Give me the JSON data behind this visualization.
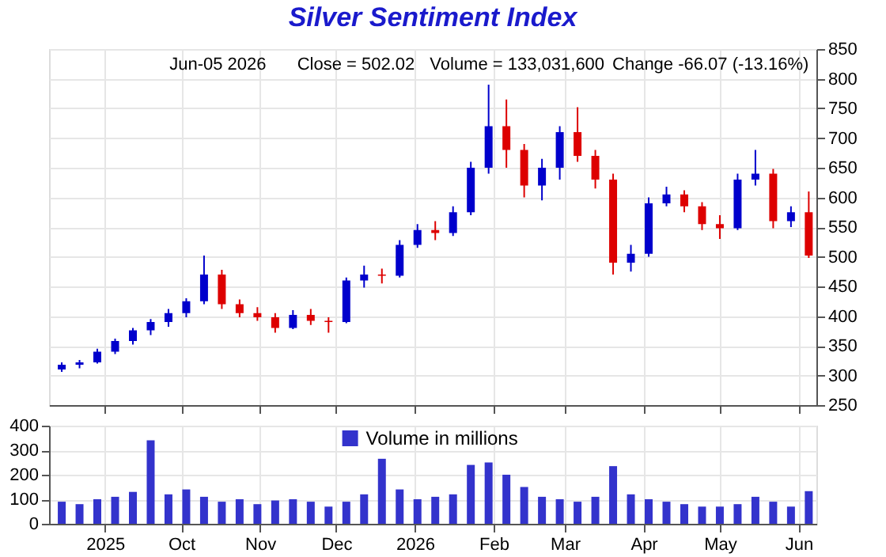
{
  "chart_data": [
    {
      "type": "candlestick",
      "title": "Silver Sentiment Index",
      "annotations": [
        "Jun-05  2026",
        "Close = 502.02",
        "Volume = 133,031,600",
        "Change -66.07 (-13.16%)"
      ],
      "x": [
        "2025-08-15",
        "2025-08-22",
        "2025-08-29",
        "2025-09-05",
        "2025-09-12",
        "2025-09-19",
        "2025-09-26",
        "2025-10-03",
        "2025-10-10",
        "2025-10-17",
        "2025-10-24",
        "2025-10-31",
        "2025-11-07",
        "2025-11-14",
        "2025-11-21",
        "2025-11-28",
        "2025-12-05",
        "2025-12-12",
        "2025-12-19",
        "2025-12-26",
        "2026-01-02",
        "2026-01-09",
        "2026-01-16",
        "2026-01-23",
        "2026-01-30",
        "2026-02-06",
        "2026-02-13",
        "2026-02-20",
        "2026-02-27",
        "2026-03-06",
        "2026-03-13",
        "2026-03-20",
        "2026-03-27",
        "2026-04-03",
        "2026-04-10",
        "2026-04-17",
        "2026-04-24",
        "2026-05-01",
        "2026-05-08",
        "2026-05-15",
        "2026-05-22",
        "2026-05-29",
        "2026-06-05"
      ],
      "ohlc": [
        [
          310,
          322,
          306,
          318
        ],
        [
          318,
          326,
          312,
          322
        ],
        [
          322,
          345,
          320,
          340
        ],
        [
          340,
          362,
          336,
          358
        ],
        [
          358,
          380,
          352,
          376
        ],
        [
          376,
          395,
          368,
          390
        ],
        [
          390,
          412,
          382,
          405
        ],
        [
          405,
          430,
          398,
          425
        ],
        [
          425,
          502,
          420,
          470
        ],
        [
          470,
          478,
          412,
          420
        ],
        [
          420,
          428,
          398,
          405
        ],
        [
          405,
          415,
          392,
          398
        ],
        [
          398,
          405,
          372,
          380
        ],
        [
          380,
          410,
          378,
          402
        ],
        [
          402,
          412,
          385,
          392
        ],
        [
          392,
          398,
          372,
          390
        ],
        [
          390,
          465,
          388,
          460
        ],
        [
          460,
          485,
          448,
          470
        ],
        [
          470,
          480,
          455,
          468
        ],
        [
          468,
          528,
          465,
          520
        ],
        [
          520,
          555,
          515,
          545
        ],
        [
          545,
          560,
          528,
          540
        ],
        [
          540,
          585,
          535,
          575
        ],
        [
          575,
          660,
          570,
          650
        ],
        [
          650,
          790,
          640,
          720
        ],
        [
          720,
          765,
          650,
          680
        ],
        [
          680,
          690,
          600,
          620
        ],
        [
          620,
          665,
          595,
          650
        ],
        [
          650,
          720,
          630,
          710
        ],
        [
          710,
          752,
          660,
          670
        ],
        [
          670,
          680,
          615,
          630
        ],
        [
          630,
          640,
          470,
          490
        ],
        [
          490,
          520,
          475,
          505
        ],
        [
          505,
          600,
          500,
          590
        ],
        [
          590,
          618,
          585,
          605
        ],
        [
          605,
          612,
          575,
          585
        ],
        [
          585,
          592,
          545,
          555
        ],
        [
          555,
          570,
          530,
          548
        ],
        [
          548,
          640,
          545,
          630
        ],
        [
          630,
          680,
          620,
          640
        ],
        [
          640,
          648,
          548,
          560
        ],
        [
          560,
          585,
          550,
          575
        ],
        [
          575,
          610,
          498,
          502
        ]
      ],
      "colors": [
        "#0000cc",
        "#0000cc",
        "#0000cc",
        "#0000cc",
        "#0000cc",
        "#0000cc",
        "#0000cc",
        "#0000cc",
        "#0000cc",
        "#dd0000",
        "#dd0000",
        "#dd0000",
        "#dd0000",
        "#0000cc",
        "#dd0000",
        "#dd0000",
        "#0000cc",
        "#0000cc",
        "#dd0000",
        "#0000cc",
        "#0000cc",
        "#dd0000",
        "#0000cc",
        "#0000cc",
        "#0000cc",
        "#dd0000",
        "#dd0000",
        "#0000cc",
        "#0000cc",
        "#dd0000",
        "#dd0000",
        "#dd0000",
        "#0000cc",
        "#0000cc",
        "#0000cc",
        "#dd0000",
        "#dd0000",
        "#dd0000",
        "#0000cc",
        "#0000cc",
        "#dd0000",
        "#0000cc",
        "#dd0000"
      ],
      "xlim": [
        "2025-08-10",
        "2026-06-08"
      ],
      "ylim": [
        250,
        850
      ],
      "yticks": [
        250,
        300,
        350,
        400,
        450,
        500,
        550,
        600,
        650,
        700,
        750,
        800,
        850
      ],
      "grid": true,
      "tick_labels": "y"
    },
    {
      "type": "bar",
      "x": [
        "2025-08-15",
        "2025-08-22",
        "2025-08-29",
        "2025-09-05",
        "2025-09-12",
        "2025-09-19",
        "2025-09-26",
        "2025-10-03",
        "2025-10-10",
        "2025-10-17",
        "2025-10-24",
        "2025-10-31",
        "2025-11-07",
        "2025-11-14",
        "2025-11-21",
        "2025-11-28",
        "2025-12-05",
        "2025-12-12",
        "2025-12-19",
        "2025-12-26",
        "2026-01-02",
        "2026-01-09",
        "2026-01-16",
        "2026-01-23",
        "2026-01-30",
        "2026-02-06",
        "2026-02-13",
        "2026-02-20",
        "2026-02-27",
        "2026-03-06",
        "2026-03-13",
        "2026-03-20",
        "2026-03-27",
        "2026-04-03",
        "2026-04-10",
        "2026-04-17",
        "2026-04-24",
        "2026-05-01",
        "2026-05-08",
        "2026-05-15",
        "2026-05-22",
        "2026-05-29",
        "2026-06-05"
      ],
      "series": [
        {
          "name": "Volume in millions",
          "color": "#3333cc",
          "values": [
            90,
            80,
            100,
            110,
            130,
            340,
            120,
            140,
            110,
            90,
            100,
            80,
            95,
            100,
            90,
            70,
            90,
            120,
            265,
            140,
            100,
            110,
            120,
            240,
            250,
            200,
            150,
            110,
            100,
            90,
            110,
            235,
            120,
            100,
            90,
            80,
            70,
            70,
            80,
            110,
            90,
            70,
            133
          ]
        }
      ],
      "xlim": [
        "2025-08-10",
        "2026-06-08"
      ],
      "xticks": [
        {
          "value": "2025-09-01",
          "label": "2025"
        },
        {
          "value": "2025-10-01",
          "label": "Oct"
        },
        {
          "value": "2025-11-01",
          "label": "Nov"
        },
        {
          "value": "2025-12-01",
          "label": "Dec"
        },
        {
          "value": "2026-01-01",
          "label": "2026"
        },
        {
          "value": "2026-02-01",
          "label": "Feb"
        },
        {
          "value": "2026-03-01",
          "label": "Mar"
        },
        {
          "value": "2026-04-01",
          "label": "Apr"
        },
        {
          "value": "2026-05-01",
          "label": "May"
        },
        {
          "value": "2026-06-01",
          "label": "Jun"
        }
      ],
      "ylim": [
        0,
        400
      ],
      "yticks": [
        0,
        100,
        200,
        300,
        400
      ],
      "grid": true,
      "legend": "top"
    }
  ]
}
